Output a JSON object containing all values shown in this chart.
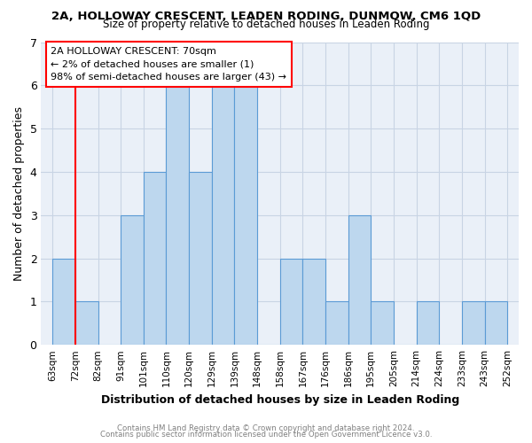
{
  "title": "2A, HOLLOWAY CRESCENT, LEADEN RODING, DUNMOW, CM6 1QD",
  "subtitle": "Size of property relative to detached houses in Leaden Roding",
  "xlabel": "Distribution of detached houses by size in Leaden Roding",
  "ylabel": "Number of detached properties",
  "categories": [
    "63sqm",
    "72sqm",
    "82sqm",
    "91sqm",
    "101sqm",
    "110sqm",
    "120sqm",
    "129sqm",
    "139sqm",
    "148sqm",
    "158sqm",
    "167sqm",
    "176sqm",
    "186sqm",
    "195sqm",
    "205sqm",
    "214sqm",
    "224sqm",
    "233sqm",
    "243sqm",
    "252sqm"
  ],
  "bar_values": [
    2,
    1,
    0,
    3,
    4,
    6,
    4,
    6,
    6,
    0,
    2,
    2,
    1,
    3,
    1,
    0,
    1,
    0,
    1,
    1
  ],
  "bar_color": "#bdd7ee",
  "bar_edge_color": "#5b9bd5",
  "ylim": [
    0,
    7
  ],
  "yticks": [
    0,
    1,
    2,
    3,
    4,
    5,
    6,
    7
  ],
  "red_line_x": 1.0,
  "annotation_title": "2A HOLLOWAY CRESCENT: 70sqm",
  "annotation_line1": "← 2% of detached houses are smaller (1)",
  "annotation_line2": "98% of semi-detached houses are larger (43) →",
  "footer_line1": "Contains HM Land Registry data © Crown copyright and database right 2024.",
  "footer_line2": "Contains public sector information licensed under the Open Government Licence v3.0.",
  "bg_color": "#eaf0f8",
  "grid_color": "#c8d4e4"
}
